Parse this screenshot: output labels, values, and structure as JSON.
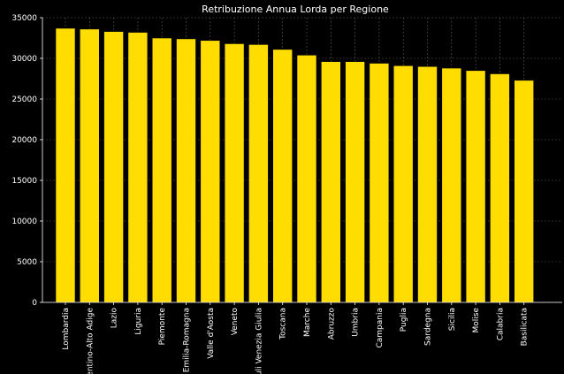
{
  "chart_data": {
    "type": "bar",
    "title": "Retribuzione Annua Lorda per Regione",
    "xlabel": "",
    "ylabel": "",
    "ylim": [
      0,
      35000
    ],
    "yticks": [
      0,
      5000,
      10000,
      15000,
      20000,
      25000,
      30000,
      35000
    ],
    "grid": true,
    "bar_color": "#FFDD00",
    "bar_edge_color": "#000000",
    "background": "#000000",
    "text_color": "#ffffff",
    "categories": [
      "Lombardia",
      "Trentino-Alto Adige",
      "Lazio",
      "Liguria",
      "Piemonte",
      "Emilia-Romagna",
      "Valle d'Aosta",
      "Veneto",
      "Friuli Venezia Giulia",
      "Toscana",
      "Marche",
      "Abruzzo",
      "Umbria",
      "Campania",
      "Puglia",
      "Sardegna",
      "Sicilia",
      "Molise",
      "Calabria",
      "Basilicata"
    ],
    "values": [
      33700,
      33600,
      33300,
      33200,
      32500,
      32400,
      32200,
      31800,
      31700,
      31100,
      30400,
      29600,
      29600,
      29400,
      29100,
      29000,
      28800,
      28500,
      28100,
      27300
    ]
  }
}
